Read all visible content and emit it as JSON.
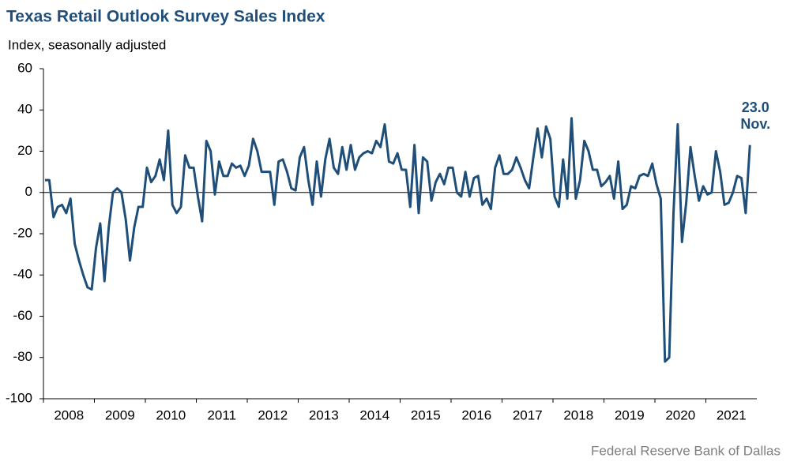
{
  "chart_data": {
    "type": "line",
    "title": "Texas Retail Outlook Survey Sales Index",
    "y_label": "Index, seasonally adjusted",
    "source": "Federal Reserve Bank of Dallas",
    "annotation": "Nov.",
    "year_labels": [
      "2008",
      "2009",
      "2010",
      "2011",
      "2012",
      "2013",
      "2014",
      "2015",
      "2016",
      "2017",
      "2018",
      "2019",
      "2020",
      "2021"
    ],
    "ylim": [
      -100,
      60
    ],
    "yticks": [
      -100,
      -80,
      -60,
      -40,
      -20,
      0,
      20,
      40,
      60
    ],
    "zero_line": true,
    "series": [
      {
        "name": "Sales Index",
        "color": "#1f4e79",
        "values": [
          6,
          6,
          -12,
          -7,
          -6,
          -10,
          -3,
          -25,
          -33,
          -40,
          -46,
          -47,
          -27,
          -15,
          -43,
          -17,
          0,
          2,
          0,
          -13,
          -33,
          -17,
          -7,
          -7,
          12,
          5,
          8,
          16,
          6,
          30,
          -6,
          -10,
          -7,
          18,
          12,
          12,
          -2,
          -14,
          25,
          20,
          -1,
          15,
          8,
          8,
          14,
          12,
          13,
          8,
          13,
          26,
          20,
          10,
          10,
          10,
          -6,
          15,
          16,
          10,
          2,
          1,
          17,
          22,
          6,
          -6,
          15,
          -2,
          16,
          26,
          12,
          9,
          22,
          11,
          23,
          11,
          17,
          19,
          20,
          19,
          25,
          22,
          33,
          15,
          14,
          19,
          11,
          11,
          -7,
          23,
          -10,
          17,
          15,
          -4,
          5,
          9,
          4,
          12,
          12,
          0,
          -2,
          10,
          -2,
          7,
          8,
          -6,
          -3,
          -8,
          12,
          18,
          9,
          9,
          11,
          17,
          12,
          6,
          2,
          17,
          31,
          17,
          32,
          26,
          -2,
          -7,
          16,
          -3,
          36,
          -3,
          6,
          25,
          20,
          11,
          11,
          3,
          5,
          8,
          -3,
          15,
          -8,
          -6,
          3,
          2,
          8,
          9,
          8,
          14,
          4,
          -3,
          -82,
          -80,
          -10,
          33,
          -24,
          -5,
          22,
          8,
          -4,
          3,
          -1,
          0,
          20,
          10,
          -6,
          -5,
          0,
          8,
          7,
          -10,
          23
        ],
        "value_labels": [
          null,
          null,
          null,
          null,
          null,
          null,
          null,
          null,
          null,
          null,
          null,
          null,
          null,
          null,
          null,
          null,
          null,
          null,
          null,
          null,
          null,
          null,
          null,
          null,
          null,
          null,
          null,
          null,
          null,
          null,
          null,
          null,
          null,
          null,
          null,
          null,
          null,
          null,
          null,
          null,
          null,
          null,
          null,
          null,
          null,
          null,
          null,
          null,
          null,
          null,
          null,
          null,
          null,
          null,
          null,
          null,
          null,
          null,
          null,
          null,
          null,
          null,
          null,
          null,
          null,
          null,
          null,
          null,
          null,
          null,
          null,
          null,
          null,
          null,
          null,
          null,
          null,
          null,
          null,
          null,
          null,
          null,
          null,
          null,
          null,
          null,
          null,
          null,
          null,
          null,
          null,
          null,
          null,
          null,
          null,
          null,
          null,
          null,
          null,
          null,
          null,
          null,
          null,
          null,
          null,
          null,
          null,
          null,
          null,
          null,
          null,
          null,
          null,
          null,
          null,
          null,
          null,
          null,
          null,
          null,
          null,
          null,
          null,
          null,
          null,
          null,
          null,
          null,
          null,
          null,
          null,
          null,
          null,
          null,
          null,
          null,
          null,
          null,
          null,
          null,
          null,
          null,
          null,
          null,
          null,
          null,
          null,
          null,
          null,
          null,
          null,
          null,
          null,
          null,
          null,
          null,
          null,
          null,
          null,
          null,
          null,
          null,
          null,
          null,
          null,
          null,
          "23.0"
        ]
      }
    ]
  }
}
